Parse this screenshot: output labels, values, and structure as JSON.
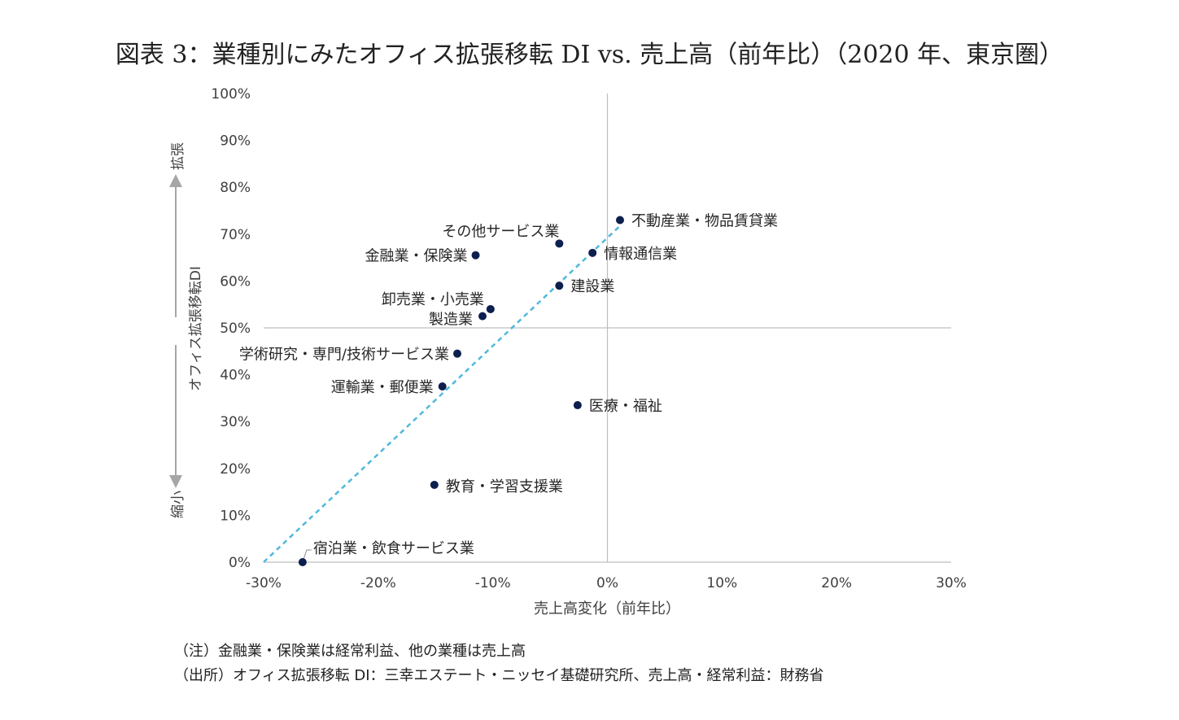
{
  "title": "図表 3：業種別にみたオフィス拡張移転 DI vs. 売上高（前年比）（2020 年、東京圏）",
  "chart_data": {
    "type": "scatter",
    "title": "図表 3：業種別にみたオフィス拡張移転 DI vs. 売上高（前年比）（2020 年、東京圏）",
    "xlabel": "売上高変化（前年比）",
    "ylabel": "オフィス拡張移転DI",
    "ylabel_up": "拡張",
    "ylabel_down": "縮小",
    "xlim": [
      -30,
      30
    ],
    "ylim": [
      0,
      100
    ],
    "x_ticks": [
      -30,
      -20,
      -10,
      0,
      10,
      20,
      30
    ],
    "y_ticks": [
      0,
      10,
      20,
      30,
      40,
      50,
      60,
      70,
      80,
      90,
      100
    ],
    "x_tick_labels": [
      "-30%",
      "-20%",
      "-10%",
      "0%",
      "10%",
      "20%",
      "30%"
    ],
    "y_tick_labels": [
      "0%",
      "10%",
      "20%",
      "30%",
      "40%",
      "50%",
      "60%",
      "70%",
      "80%",
      "90%",
      "100%"
    ],
    "reference_lines": {
      "x": 0,
      "y": 50
    },
    "trendline": {
      "x": [
        -30,
        1.2
      ],
      "y": [
        0,
        72
      ]
    },
    "grid": false,
    "legend": "none",
    "colors": {
      "points": "#0d1f4e",
      "trendline": "#4fb8dc",
      "axes": "#bfbfbf"
    },
    "points": [
      {
        "label": "不動産業・物品賃貸業",
        "x": 1.1,
        "y": 73
      },
      {
        "label": "その他サービス業",
        "x": -4.2,
        "y": 68
      },
      {
        "label": "情報通信業",
        "x": -1.3,
        "y": 66
      },
      {
        "label": "金融業・保険業",
        "x": -11.5,
        "y": 65.5
      },
      {
        "label": "建設業",
        "x": -4.2,
        "y": 59
      },
      {
        "label": "卸売業・小売業",
        "x": -10.2,
        "y": 54
      },
      {
        "label": "製造業",
        "x": -10.9,
        "y": 52.5
      },
      {
        "label": "学術研究・専門/技術サービス業",
        "x": -13.1,
        "y": 44.5
      },
      {
        "label": "運輸業・郵便業",
        "x": -14.4,
        "y": 37.5
      },
      {
        "label": "医療・福祉",
        "x": -2.6,
        "y": 33.5
      },
      {
        "label": "教育・学習支援業",
        "x": -15.1,
        "y": 16.5
      },
      {
        "label": "宿泊業・飲食サービス業",
        "x": -26.6,
        "y": 0
      }
    ]
  },
  "notes": {
    "note1": "（注）金融業・保険業は経常利益、他の業種は売上高",
    "note2": "（出所）オフィス拡張移転 DI：三幸エステート・ニッセイ基礎研究所、売上高・経常利益：財務省"
  }
}
